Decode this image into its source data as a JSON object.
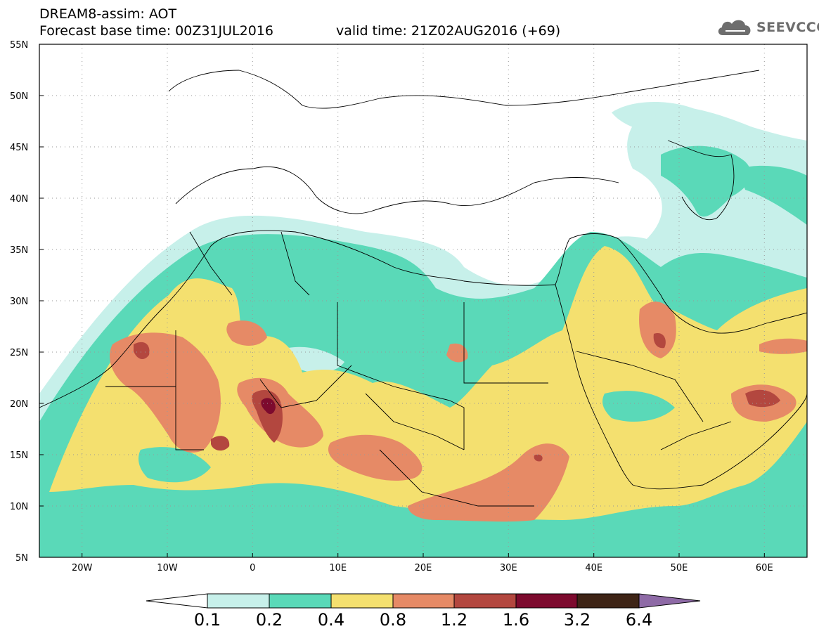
{
  "header": {
    "line1": "DREAM8-assim: AOT",
    "line2": "Forecast base time: 00Z31JUL2016",
    "valid": "valid time: 21Z02AUG2016 (+69)",
    "logo": "SEEVCCC"
  },
  "map": {
    "latitude_ticks": [
      "55N",
      "50N",
      "45N",
      "40N",
      "35N",
      "30N",
      "25N",
      "20N",
      "15N",
      "10N",
      "5N"
    ],
    "longitude_ticks": [
      "20W",
      "10W",
      "0",
      "10E",
      "20E",
      "30E",
      "40E",
      "50E",
      "60E"
    ],
    "lon_range": [
      -25,
      65
    ],
    "lat_range": [
      5,
      55
    ],
    "colors": {
      "0.1": "#c7f0ea",
      "0.2": "#5ad9b8",
      "0.4": "#f4e06f",
      "0.8": "#e68a66",
      "1.2": "#b3473f",
      "1.6": "#7d0a2e",
      "3.2": "#3e2416",
      "6.4": "#8e6aa6"
    }
  },
  "colorbar": {
    "labels": [
      "0.1",
      "0.2",
      "0.4",
      "0.8",
      "1.2",
      "1.6",
      "3.2",
      "6.4"
    ]
  }
}
